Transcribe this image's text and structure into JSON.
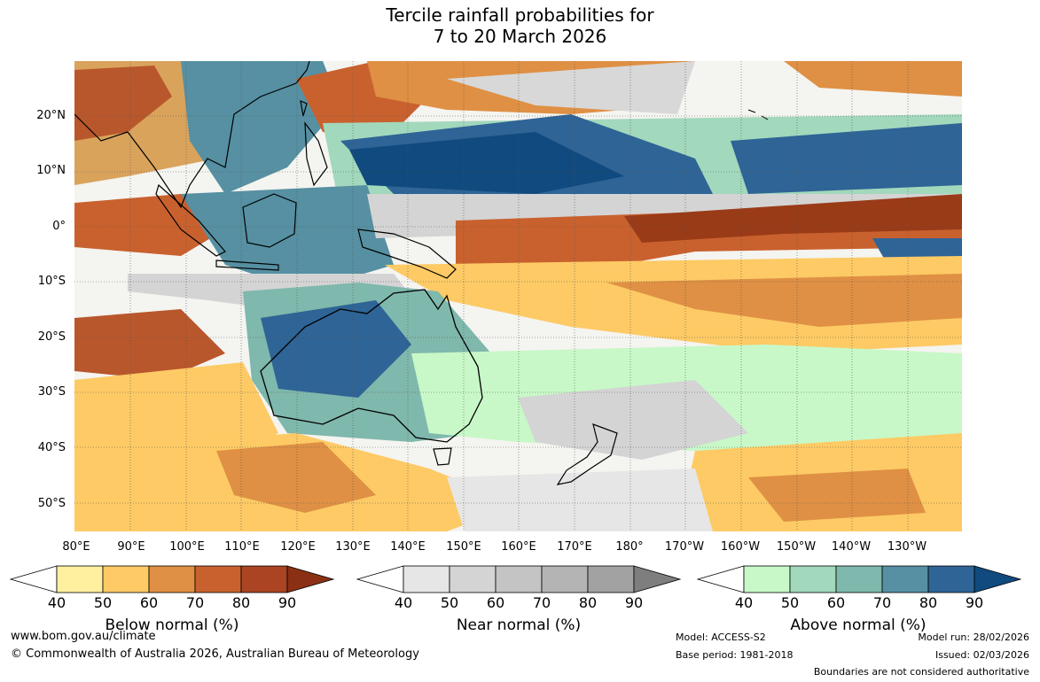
{
  "title": {
    "line1": "Tercile rainfall probabilities for",
    "line2": "7 to 20 March 2026"
  },
  "lat_labels": [
    "20°N",
    "10°N",
    "0°",
    "10°S",
    "20°S",
    "30°S",
    "40°S",
    "50°S"
  ],
  "lon_labels": [
    "80°E",
    "90°E",
    "100°E",
    "110°E",
    "120°E",
    "130°E",
    "140°E",
    "150°E",
    "160°E",
    "170°E",
    "180°",
    "170°W",
    "160°W",
    "150°W",
    "140°W",
    "130°W"
  ],
  "colorbars": [
    {
      "name": "below",
      "label": "Below normal (%)",
      "ticks": [
        "40",
        "50",
        "60",
        "70",
        "80",
        "90"
      ],
      "colors": [
        "#fff0a0",
        "#fdca65",
        "#df9044",
        "#c9612e",
        "#aa4422",
        "#8b3014"
      ]
    },
    {
      "name": "near",
      "label": "Near normal (%)",
      "ticks": [
        "40",
        "50",
        "60",
        "70",
        "80",
        "90"
      ],
      "colors": [
        "#e6e6e6",
        "#d4d4d4",
        "#c4c4c4",
        "#b4b4b4",
        "#a2a2a2",
        "#7e7e7e"
      ]
    },
    {
      "name": "above",
      "label": "Above normal (%)",
      "ticks": [
        "40",
        "50",
        "60",
        "70",
        "80",
        "90"
      ],
      "colors": [
        "#c8f8c8",
        "#a2d8bc",
        "#7fb8ac",
        "#5690a2",
        "#2f6496",
        "#104a7e"
      ]
    }
  ],
  "footer": {
    "url": "www.bom.gov.au/climate",
    "copyright": "© Commonwealth of Australia 2026, Australian Bureau of Meteorology",
    "model": "Model: ACCESS-S2",
    "base_period": "Base period: 1981-2018",
    "model_run": "Model run: 28/02/2026",
    "issued": "Issued: 02/03/2026",
    "disclaimer": "Boundaries are not considered authoritative"
  }
}
